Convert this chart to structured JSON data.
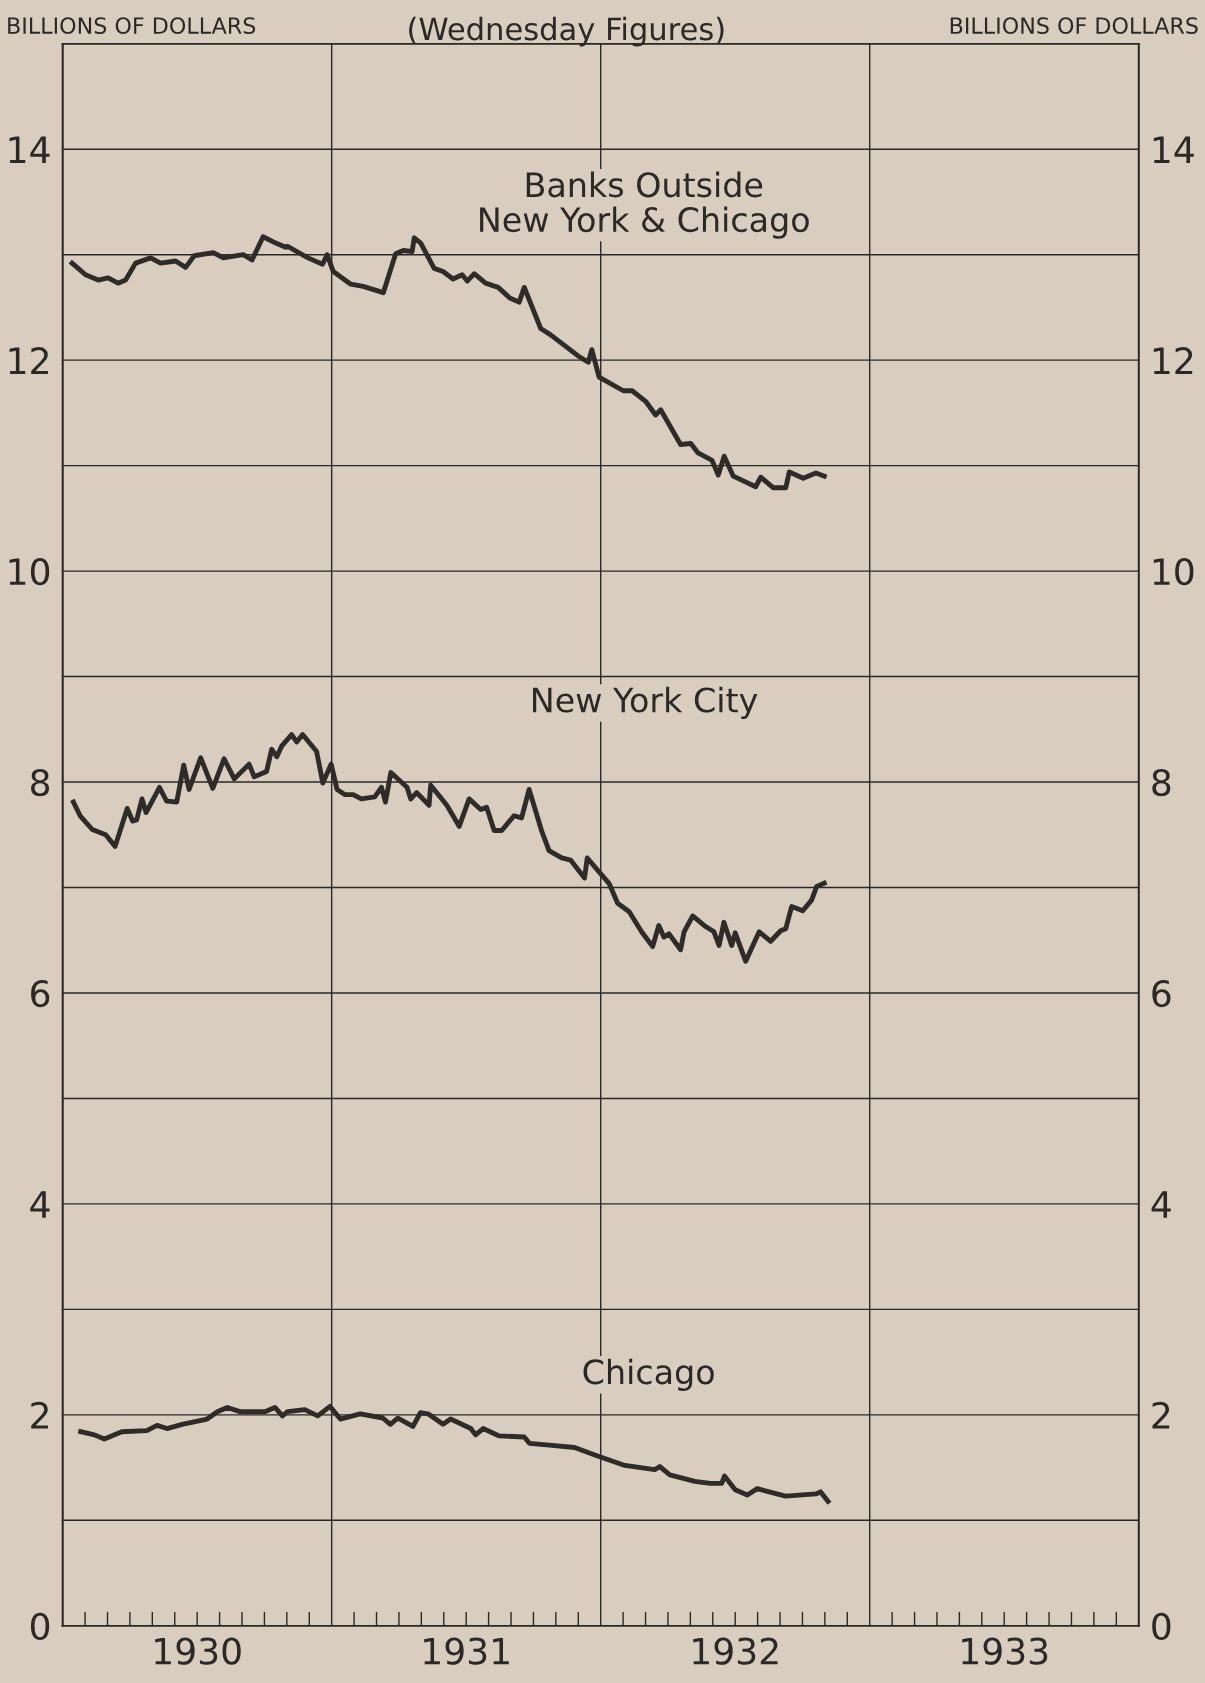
{
  "chart_data": {
    "type": "line",
    "subtitle": "(Wednesday Figures)",
    "ylabel": "BILLIONS OF DOLLARS",
    "y2label": "BILLIONS OF DOLLARS",
    "xlim": [
      1930,
      1934
    ],
    "xticks": [
      {
        "value": 1930.0833,
        "label": null
      },
      {
        "value": 1930.1667,
        "label": null
      },
      {
        "value": 1930.25,
        "label": null
      },
      {
        "value": 1930.3333,
        "label": null
      },
      {
        "value": 1930.4167,
        "label": null
      },
      {
        "value": 1930.5,
        "label": "1930"
      },
      {
        "value": 1930.5833,
        "label": null
      },
      {
        "value": 1930.6667,
        "label": null
      },
      {
        "value": 1930.75,
        "label": null
      },
      {
        "value": 1930.8333,
        "label": null
      },
      {
        "value": 1930.9167,
        "label": null
      },
      {
        "value": 1931.0833,
        "label": null
      },
      {
        "value": 1931.1667,
        "label": null
      },
      {
        "value": 1931.25,
        "label": null
      },
      {
        "value": 1931.3333,
        "label": null
      },
      {
        "value": 1931.4167,
        "label": null
      },
      {
        "value": 1931.5,
        "label": "1931"
      },
      {
        "value": 1931.5833,
        "label": null
      },
      {
        "value": 1931.6667,
        "label": null
      },
      {
        "value": 1931.75,
        "label": null
      },
      {
        "value": 1931.8333,
        "label": null
      },
      {
        "value": 1931.9167,
        "label": null
      },
      {
        "value": 1932.0833,
        "label": null
      },
      {
        "value": 1932.1667,
        "label": null
      },
      {
        "value": 1932.25,
        "label": null
      },
      {
        "value": 1932.3333,
        "label": null
      },
      {
        "value": 1932.4167,
        "label": null
      },
      {
        "value": 1932.5,
        "label": "1932"
      },
      {
        "value": 1932.5833,
        "label": null
      },
      {
        "value": 1932.6667,
        "label": null
      },
      {
        "value": 1932.75,
        "label": null
      },
      {
        "value": 1932.8333,
        "label": null
      },
      {
        "value": 1932.9167,
        "label": null
      },
      {
        "value": 1933.0833,
        "label": null
      },
      {
        "value": 1933.1667,
        "label": null
      },
      {
        "value": 1933.25,
        "label": null
      },
      {
        "value": 1933.3333,
        "label": null
      },
      {
        "value": 1933.4167,
        "label": null
      },
      {
        "value": 1933.5,
        "label": "1933"
      },
      {
        "value": 1933.5833,
        "label": null
      },
      {
        "value": 1933.6667,
        "label": null
      },
      {
        "value": 1933.75,
        "label": null
      },
      {
        "value": 1933.8333,
        "label": null
      },
      {
        "value": 1933.9167,
        "label": null
      }
    ],
    "ylim": [
      0,
      15
    ],
    "yticks": [
      0,
      {
        "value": 1,
        "label": null
      },
      2,
      {
        "value": 3,
        "label": null
      },
      4,
      {
        "value": 5,
        "label": null
      },
      6,
      {
        "value": 7,
        "label": null
      },
      8,
      {
        "value": 9,
        "label": null
      },
      10,
      {
        "value": 11,
        "label": null
      },
      12,
      {
        "value": 13,
        "label": null
      },
      14
    ],
    "y2lim": [
      0,
      15
    ],
    "y2ticks": [
      0,
      {
        "value": 1,
        "label": null
      },
      2,
      {
        "value": 3,
        "label": null
      },
      4,
      {
        "value": 5,
        "label": null
      },
      6,
      {
        "value": 7,
        "label": null
      },
      8,
      {
        "value": 9,
        "label": null
      },
      10,
      {
        "value": 11,
        "label": null
      },
      12,
      {
        "value": 13,
        "label": null
      },
      14
    ],
    "grid": "y",
    "legend": false,
    "marker": "none",
    "line_style": "solid",
    "ref_lines": [
      {
        "axis": "x",
        "value": 1931
      },
      {
        "axis": "x",
        "value": 1932
      },
      {
        "axis": "x",
        "value": 1933
      }
    ],
    "series": [
      {
        "name": "Banks Outside\nNew York & Chicago",
        "color": "#2e2b29",
        "x": [
          1930.035,
          1930.085,
          1930.132,
          1930.169,
          1930.206,
          1930.234,
          1930.271,
          1930.327,
          1930.364,
          1930.42,
          1930.457,
          1930.489,
          1930.56,
          1930.597,
          1930.671,
          1930.704,
          1930.745,
          1930.792,
          1930.829,
          1930.836,
          1930.912,
          1930.966,
          1930.983,
          1931.006,
          1931.071,
          1931.117,
          1931.192,
          1931.238,
          1931.266,
          1931.299,
          1931.307,
          1931.331,
          1931.381,
          1931.414,
          1931.451,
          1931.485,
          1931.504,
          1931.53,
          1931.572,
          1931.619,
          1931.662,
          1931.697,
          1931.716,
          1931.777,
          1931.814,
          1931.916,
          1931.954,
          1931.967,
          1931.994,
          1932.084,
          1932.117,
          1932.167,
          1932.204,
          1932.223,
          1932.297,
          1932.335,
          1932.362,
          1932.414,
          1932.437,
          1932.459,
          1932.493,
          1932.576,
          1932.595,
          1932.642,
          1932.688,
          1932.701,
          1932.753,
          1932.8,
          1932.831
        ],
        "values": [
          12.92,
          12.81,
          12.76,
          12.78,
          12.73,
          12.76,
          12.92,
          12.97,
          12.92,
          12.94,
          12.88,
          12.99,
          13.02,
          12.97,
          13.0,
          12.95,
          13.17,
          13.11,
          13.07,
          13.08,
          12.97,
          12.91,
          13.0,
          12.84,
          12.72,
          12.7,
          12.64,
          13.01,
          13.04,
          13.03,
          13.16,
          13.11,
          12.87,
          12.84,
          12.77,
          12.81,
          12.75,
          12.82,
          12.73,
          12.69,
          12.59,
          12.55,
          12.69,
          12.3,
          12.24,
          12.04,
          11.98,
          12.1,
          11.84,
          11.71,
          11.71,
          11.61,
          11.48,
          11.53,
          11.2,
          11.21,
          11.12,
          11.05,
          10.91,
          11.09,
          10.9,
          10.8,
          10.89,
          10.79,
          10.79,
          10.94,
          10.88,
          10.93,
          10.9
        ]
      },
      {
        "name": "New York City",
        "color": "#2e2b29",
        "x": [
          1930.04,
          1930.065,
          1930.11,
          1930.16,
          1930.195,
          1930.24,
          1930.26,
          1930.275,
          1930.295,
          1930.31,
          1930.36,
          1930.386,
          1930.424,
          1930.45,
          1930.47,
          1930.513,
          1930.558,
          1930.6,
          1930.638,
          1930.693,
          1930.712,
          1930.758,
          1930.777,
          1930.796,
          1930.814,
          1930.851,
          1930.87,
          1930.892,
          1930.944,
          1930.967,
          1930.998,
          1931.02,
          1931.05,
          1931.08,
          1931.11,
          1931.16,
          1931.185,
          1931.2,
          1931.22,
          1931.28,
          1931.294,
          1931.316,
          1931.362,
          1931.368,
          1931.428,
          1931.474,
          1931.511,
          1931.554,
          1931.576,
          1931.604,
          1931.632,
          1931.678,
          1931.706,
          1931.734,
          1931.78,
          1931.808,
          1931.855,
          1931.888,
          1931.94,
          1931.95,
          1931.99,
          1932.031,
          1932.063,
          1932.106,
          1932.152,
          1932.193,
          1932.216,
          1932.235,
          1932.254,
          1932.297,
          1932.31,
          1932.342,
          1932.39,
          1932.421,
          1932.44,
          1932.458,
          1932.487,
          1932.5,
          1932.539,
          1932.589,
          1932.632,
          1932.669,
          1932.688,
          1932.71,
          1932.751,
          1932.784,
          1932.803,
          1932.831
        ],
        "values": [
          7.81,
          7.68,
          7.55,
          7.5,
          7.39,
          7.75,
          7.63,
          7.64,
          7.84,
          7.71,
          7.95,
          7.82,
          7.81,
          8.16,
          7.93,
          8.23,
          7.94,
          8.22,
          8.03,
          8.17,
          8.05,
          8.1,
          8.31,
          8.24,
          8.34,
          8.45,
          8.38,
          8.45,
          8.29,
          7.99,
          8.17,
          7.93,
          7.88,
          7.88,
          7.84,
          7.86,
          7.95,
          7.81,
          8.09,
          7.95,
          7.84,
          7.9,
          7.78,
          7.97,
          7.78,
          7.58,
          7.84,
          7.74,
          7.76,
          7.54,
          7.54,
          7.68,
          7.66,
          7.93,
          7.54,
          7.35,
          7.28,
          7.26,
          7.09,
          7.28,
          7.16,
          7.04,
          6.85,
          6.77,
          6.58,
          6.44,
          6.64,
          6.53,
          6.56,
          6.41,
          6.58,
          6.73,
          6.63,
          6.58,
          6.45,
          6.67,
          6.45,
          6.57,
          6.3,
          6.58,
          6.49,
          6.59,
          6.61,
          6.82,
          6.78,
          6.88,
          7.01,
          7.04
        ]
      },
      {
        "name": "Chicago",
        "color": "#2e2b29",
        "x": [
          1930.067,
          1930.118,
          1930.155,
          1930.22,
          1930.313,
          1930.351,
          1930.388,
          1930.444,
          1930.537,
          1930.575,
          1930.612,
          1930.659,
          1930.752,
          1930.789,
          1930.817,
          1930.836,
          1930.9,
          1930.948,
          1930.994,
          1931.032,
          1931.106,
          1931.19,
          1931.218,
          1931.246,
          1931.302,
          1931.33,
          1931.358,
          1931.414,
          1931.442,
          1931.517,
          1931.535,
          1931.563,
          1931.623,
          1931.716,
          1931.735,
          1931.819,
          1931.903,
          1931.978,
          1932.09,
          1932.201,
          1932.22,
          1932.257,
          1932.35,
          1932.407,
          1932.45,
          1932.46,
          1932.5,
          1932.545,
          1932.582,
          1932.687,
          1932.8,
          1932.817,
          1932.845
        ],
        "values": [
          1.84,
          1.81,
          1.77,
          1.84,
          1.85,
          1.9,
          1.87,
          1.91,
          1.96,
          2.03,
          2.07,
          2.03,
          2.03,
          2.07,
          1.99,
          2.03,
          2.05,
          1.99,
          2.08,
          1.96,
          2.01,
          1.97,
          1.91,
          1.97,
          1.89,
          2.02,
          2.01,
          1.91,
          1.96,
          1.87,
          1.81,
          1.87,
          1.8,
          1.79,
          1.73,
          1.71,
          1.69,
          1.62,
          1.52,
          1.48,
          1.51,
          1.43,
          1.37,
          1.35,
          1.35,
          1.42,
          1.29,
          1.24,
          1.3,
          1.23,
          1.25,
          1.27,
          1.18
        ]
      }
    ]
  }
}
